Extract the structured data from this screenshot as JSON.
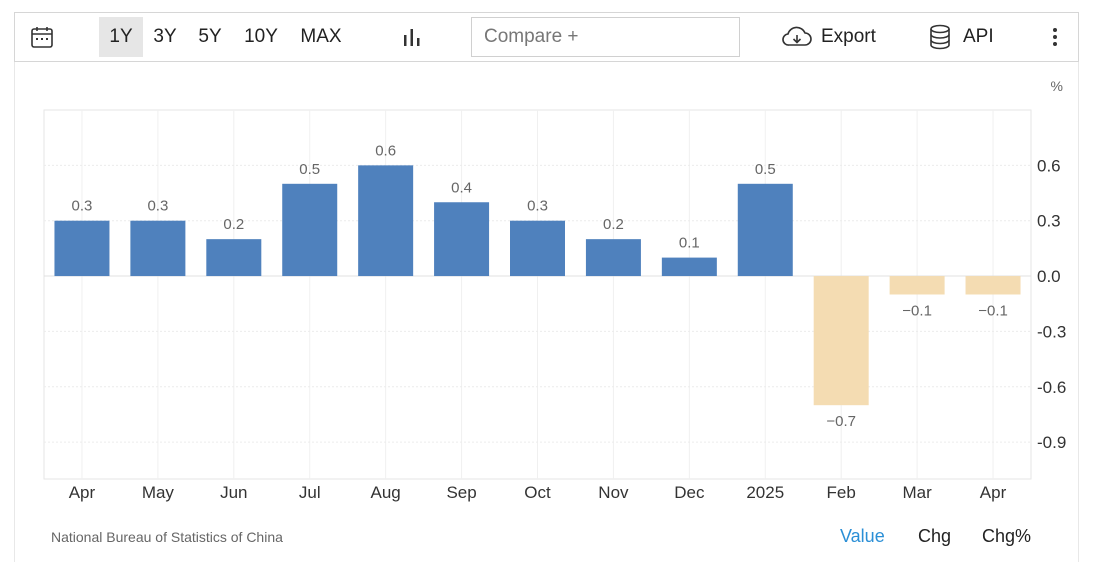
{
  "toolbar": {
    "ranges": [
      "1Y",
      "3Y",
      "5Y",
      "10Y",
      "MAX"
    ],
    "active_range": "1Y",
    "compare_placeholder": "Compare +",
    "export_label": "Export",
    "api_label": "API"
  },
  "chart_data": {
    "type": "bar",
    "categories": [
      "Apr",
      "May",
      "Jun",
      "Jul",
      "Aug",
      "Sep",
      "Oct",
      "Nov",
      "Dec",
      "2025",
      "Feb",
      "Mar",
      "Apr"
    ],
    "values": [
      0.3,
      0.3,
      0.2,
      0.5,
      0.6,
      0.4,
      0.3,
      0.2,
      0.1,
      0.5,
      -0.7,
      -0.1,
      -0.1
    ],
    "data_labels": [
      "0.3",
      "0.3",
      "0.2",
      "0.5",
      "0.6",
      "0.4",
      "0.3",
      "0.2",
      "0.1",
      "0.5",
      "−0.7",
      "−0.1",
      "−0.1"
    ],
    "ylabel": "%",
    "ylim": [
      -1.1,
      0.9
    ],
    "yticks": [
      0.6,
      0.3,
      0.0,
      -0.3,
      -0.6,
      -0.9
    ],
    "ytick_labels": [
      "0.6",
      "0.3",
      "0.0",
      "-0.3",
      "-0.6",
      "-0.9"
    ],
    "grid": true,
    "positive_color": "#4f81bd",
    "negative_color": "#f4dcb2"
  },
  "footer": {
    "source": "National Bureau of Statistics of China",
    "tabs": [
      "Value",
      "Chg",
      "Chg%"
    ],
    "active_tab": "Value",
    "active_color": "#2b8fd6"
  }
}
